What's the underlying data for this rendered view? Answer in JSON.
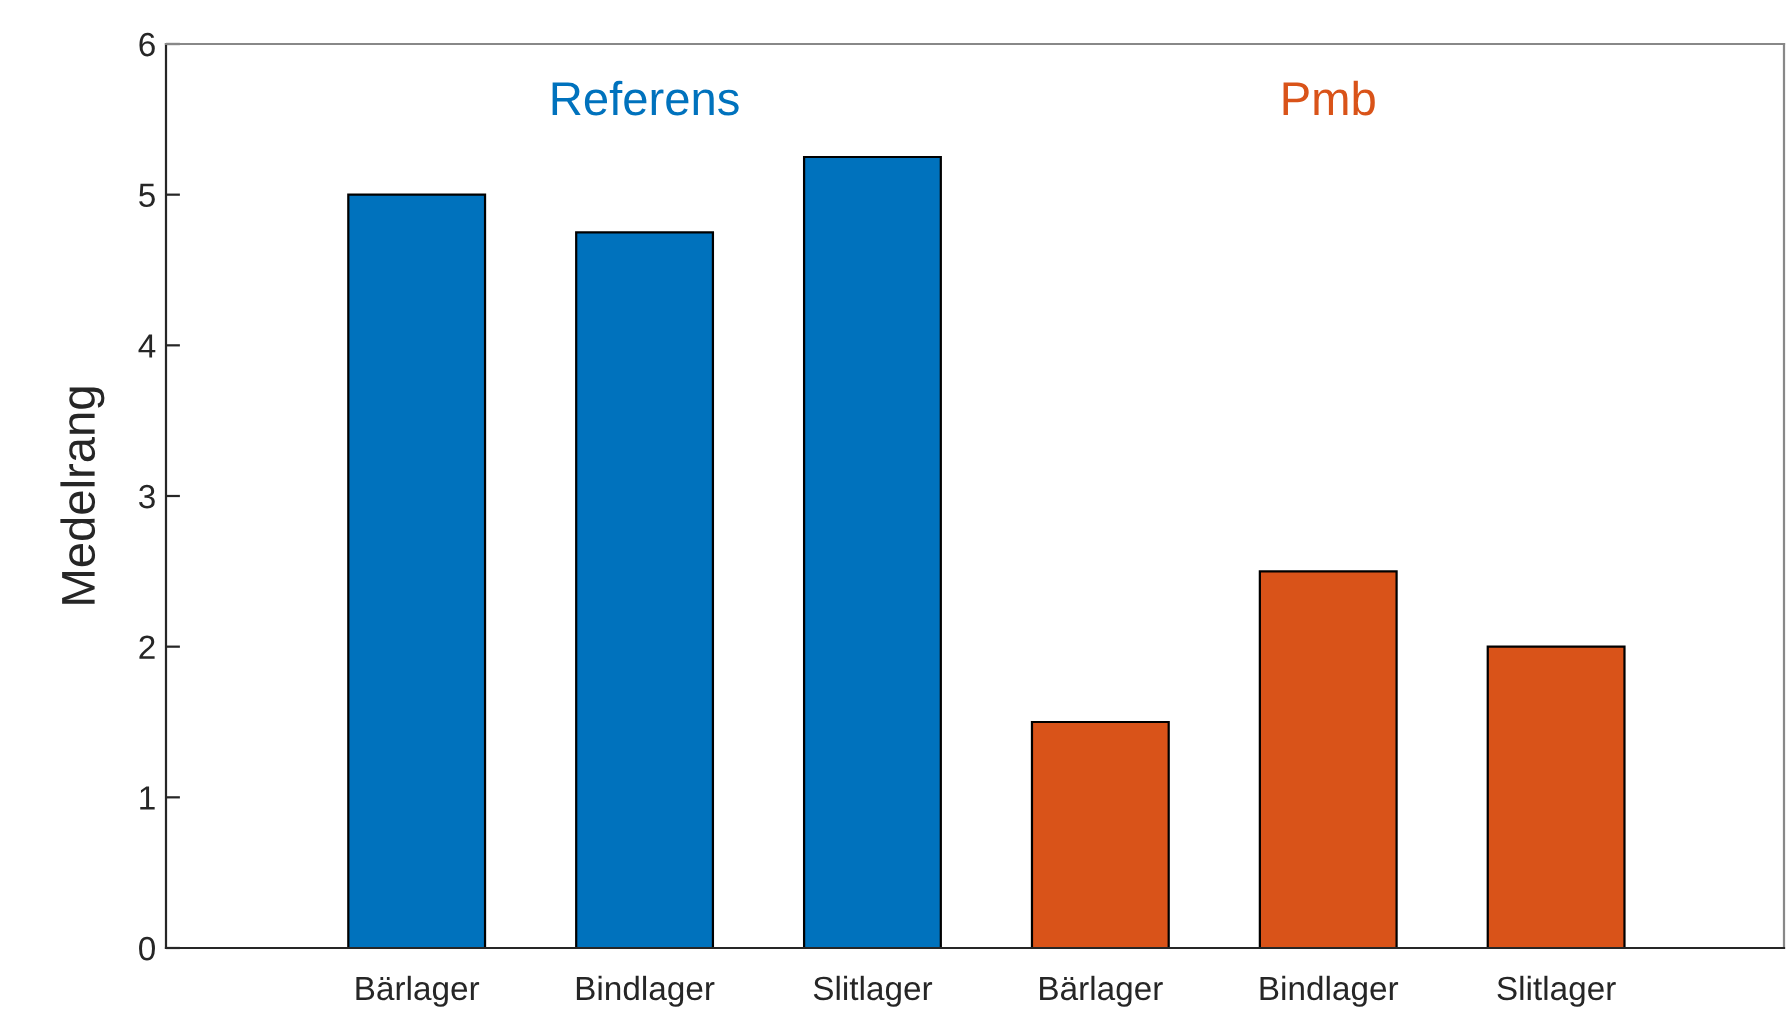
{
  "chart_data": {
    "type": "bar",
    "ylabel": "Medelrang",
    "categories": [
      "Bärlager",
      "Bindlager",
      "Slitlager",
      "Bärlager",
      "Bindlager",
      "Slitlager"
    ],
    "series": [
      {
        "name": "Referens",
        "color": "#0072bd",
        "values": [
          5,
          4.75,
          5.25,
          null,
          null,
          null
        ]
      },
      {
        "name": "Pmb",
        "color": "#d95319",
        "values": [
          null,
          null,
          null,
          1.5,
          2.5,
          2
        ]
      }
    ],
    "ylim": [
      0,
      6
    ],
    "yticks": [
      0,
      1,
      2,
      3,
      4,
      5,
      6
    ],
    "grid": false,
    "legend": false
  }
}
